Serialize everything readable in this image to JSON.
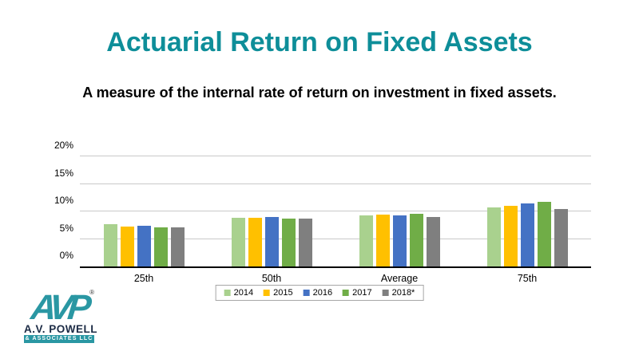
{
  "slide": {
    "title": "Actuarial Return on Fixed Assets",
    "subtitle": "A measure of the internal rate of return on investment in fixed assets.",
    "title_color": "#0e8e99"
  },
  "chart_data": {
    "type": "bar",
    "title": "",
    "categories": [
      "25th",
      "50th",
      "Average",
      "75th"
    ],
    "series": [
      {
        "name": "2014",
        "color": "#A9D18E",
        "values": [
          7.7,
          8.8,
          9.3,
          10.7
        ]
      },
      {
        "name": "2015",
        "color": "#FFC000",
        "values": [
          7.3,
          8.8,
          9.4,
          11.0
        ]
      },
      {
        "name": "2016",
        "color": "#4472C4",
        "values": [
          7.4,
          9.0,
          9.3,
          11.4
        ]
      },
      {
        "name": "2017",
        "color": "#70AD47",
        "values": [
          7.1,
          8.7,
          9.6,
          11.8
        ]
      },
      {
        "name": "2018*",
        "color": "#7F7F7F",
        "values": [
          7.1,
          8.7,
          9.0,
          10.5
        ]
      }
    ],
    "ylabel": "",
    "xlabel": "",
    "ylim": [
      0,
      20
    ],
    "ytick_step": 5,
    "ytick_labels": [
      "0%",
      "5%",
      "10%",
      "15%",
      "20%"
    ],
    "grid": true,
    "legend_position": "bottom",
    "gridline_color": "#c9c9c9",
    "axis_color": "#000000"
  },
  "logo": {
    "monogram": "AVP",
    "registered_mark": "®",
    "line1": "A.V. POWELL",
    "line2": "& ASSOCIATES LLC",
    "teal": "#2a97a3"
  }
}
